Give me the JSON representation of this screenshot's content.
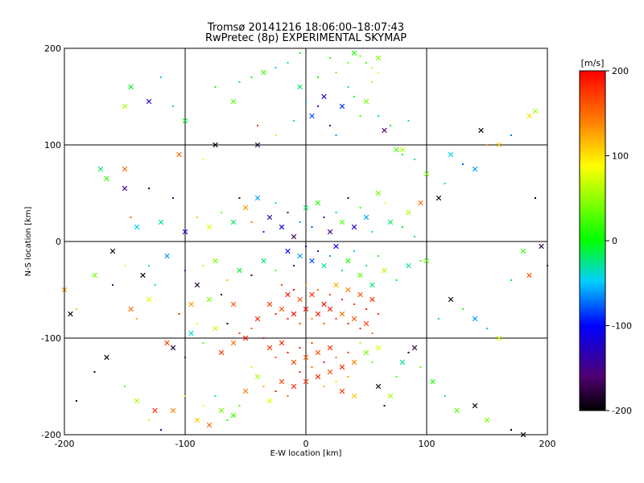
{
  "chart_data": {
    "type": "scatter",
    "title": "Tromsø 20141216 18:06:00–18:07:43",
    "subtitle": "RwPretec (8p) EXPERIMENTAL SKYMAP",
    "xlabel": "E-W location [km]",
    "ylabel": "N-S location [km]",
    "xlim": [
      -200,
      200
    ],
    "ylim": [
      -200,
      200
    ],
    "xticks": [
      -200,
      -100,
      0,
      100,
      200
    ],
    "yticks": [
      -200,
      -100,
      0,
      100,
      200
    ],
    "grid": true,
    "marker_types": [
      "x",
      "dot"
    ],
    "colorbar": {
      "label": "[m/s]",
      "range": [
        -200,
        200
      ],
      "ticks": [
        200,
        100,
        0,
        -100,
        -200
      ],
      "colormap": "black-purple-blue-cyan-green-yellow-orange-red"
    },
    "points": [
      [
        -5,
        195,
        -10,
        1
      ],
      [
        20,
        190,
        20,
        1
      ],
      [
        35,
        185,
        40,
        1
      ],
      [
        40,
        195,
        10,
        0
      ],
      [
        45,
        192,
        30,
        1
      ],
      [
        50,
        185,
        25,
        1
      ],
      [
        55,
        180,
        60,
        1
      ],
      [
        60,
        190,
        45,
        0
      ],
      [
        -15,
        185,
        -40,
        1
      ],
      [
        -25,
        180,
        -50,
        1
      ],
      [
        -35,
        175,
        20,
        0
      ],
      [
        -45,
        170,
        5,
        1
      ],
      [
        -55,
        165,
        -20,
        1
      ],
      [
        -60,
        145,
        30,
        0
      ],
      [
        -75,
        160,
        0,
        1
      ],
      [
        -100,
        125,
        -10,
        0
      ],
      [
        -110,
        140,
        -30,
        1
      ],
      [
        -120,
        170,
        -50,
        1
      ],
      [
        -130,
        145,
        -120,
        0
      ],
      [
        -150,
        140,
        60,
        0
      ],
      [
        -145,
        160,
        -10,
        0
      ],
      [
        -105,
        90,
        150,
        0
      ],
      [
        -85,
        85,
        80,
        1
      ],
      [
        -75,
        100,
        -200,
        0
      ],
      [
        -40,
        100,
        -180,
        0
      ],
      [
        -40,
        120,
        180,
        1
      ],
      [
        -25,
        110,
        60,
        1
      ],
      [
        -10,
        125,
        -30,
        1
      ],
      [
        0,
        145,
        -60,
        1
      ],
      [
        5,
        130,
        -80,
        0
      ],
      [
        10,
        140,
        -100,
        1
      ],
      [
        15,
        150,
        -120,
        0
      ],
      [
        20,
        120,
        -140,
        1
      ],
      [
        25,
        110,
        -60,
        1
      ],
      [
        30,
        140,
        -90,
        0
      ],
      [
        35,
        160,
        -30,
        1
      ],
      [
        40,
        150,
        -10,
        1
      ],
      [
        45,
        130,
        20,
        1
      ],
      [
        50,
        145,
        40,
        0
      ],
      [
        55,
        165,
        60,
        1
      ],
      [
        60,
        130,
        -40,
        1
      ],
      [
        65,
        115,
        -160,
        0
      ],
      [
        70,
        120,
        -10,
        1
      ],
      [
        75,
        95,
        30,
        0
      ],
      [
        80,
        90,
        10,
        1
      ],
      [
        85,
        125,
        -20,
        1
      ],
      [
        10,
        170,
        0,
        1
      ],
      [
        -5,
        160,
        -20,
        0
      ],
      [
        25,
        175,
        30,
        1
      ],
      [
        60,
        175,
        80,
        1
      ],
      [
        -170,
        75,
        -20,
        0
      ],
      [
        -165,
        65,
        20,
        0
      ],
      [
        -150,
        75,
        150,
        0
      ],
      [
        -150,
        55,
        -140,
        0
      ],
      [
        -145,
        25,
        160,
        1
      ],
      [
        -140,
        15,
        -50,
        0
      ],
      [
        -130,
        55,
        -190,
        1
      ],
      [
        -120,
        20,
        -30,
        0
      ],
      [
        -110,
        45,
        -160,
        1
      ],
      [
        -100,
        10,
        -120,
        0
      ],
      [
        -90,
        25,
        110,
        1
      ],
      [
        -80,
        15,
        80,
        0
      ],
      [
        -70,
        30,
        40,
        1
      ],
      [
        -60,
        20,
        -20,
        0
      ],
      [
        -55,
        45,
        -180,
        1
      ],
      [
        -50,
        35,
        130,
        0
      ],
      [
        -45,
        20,
        150,
        1
      ],
      [
        -40,
        45,
        -60,
        0
      ],
      [
        -35,
        10,
        -90,
        1
      ],
      [
        -30,
        25,
        -140,
        0
      ],
      [
        -25,
        40,
        -30,
        1
      ],
      [
        -20,
        15,
        -110,
        0
      ],
      [
        -15,
        30,
        -150,
        1
      ],
      [
        -10,
        5,
        -170,
        0
      ],
      [
        -5,
        20,
        -60,
        1
      ],
      [
        0,
        35,
        -20,
        0
      ],
      [
        5,
        15,
        -80,
        1
      ],
      [
        10,
        40,
        10,
        0
      ],
      [
        15,
        25,
        -100,
        1
      ],
      [
        20,
        10,
        -150,
        0
      ],
      [
        25,
        30,
        -40,
        1
      ],
      [
        30,
        20,
        30,
        0
      ],
      [
        35,
        45,
        -190,
        1
      ],
      [
        40,
        15,
        -120,
        0
      ],
      [
        45,
        35,
        20,
        1
      ],
      [
        50,
        25,
        -60,
        0
      ],
      [
        55,
        10,
        -30,
        1
      ],
      [
        60,
        50,
        40,
        0
      ],
      [
        65,
        40,
        90,
        1
      ],
      [
        70,
        20,
        -20,
        0
      ],
      [
        80,
        15,
        -10,
        1
      ],
      [
        85,
        30,
        60,
        0
      ],
      [
        90,
        5,
        -40,
        1
      ],
      [
        95,
        40,
        150,
        0
      ],
      [
        -160,
        -10,
        -190,
        0
      ],
      [
        -150,
        -25,
        80,
        1
      ],
      [
        -135,
        -35,
        -200,
        0
      ],
      [
        -130,
        -25,
        -30,
        1
      ],
      [
        -115,
        -15,
        -60,
        0
      ],
      [
        -100,
        -30,
        -90,
        1
      ],
      [
        -90,
        -45,
        -180,
        0
      ],
      [
        -85,
        -25,
        60,
        1
      ],
      [
        -75,
        -20,
        40,
        0
      ],
      [
        -65,
        -40,
        120,
        1
      ],
      [
        -55,
        -30,
        -10,
        0
      ],
      [
        -45,
        -35,
        -180,
        1
      ],
      [
        -35,
        -20,
        -20,
        0
      ],
      [
        -25,
        -30,
        30,
        1
      ],
      [
        -15,
        -10,
        -100,
        0
      ],
      [
        -10,
        -25,
        -150,
        1
      ],
      [
        -5,
        -15,
        -60,
        0
      ],
      [
        0,
        -5,
        -120,
        1
      ],
      [
        5,
        -20,
        -80,
        0
      ],
      [
        10,
        -10,
        -150,
        1
      ],
      [
        15,
        -25,
        -30,
        0
      ],
      [
        20,
        -15,
        -60,
        1
      ],
      [
        25,
        -5,
        -100,
        0
      ],
      [
        30,
        -30,
        -20,
        1
      ],
      [
        35,
        -20,
        10,
        0
      ],
      [
        40,
        -10,
        -50,
        1
      ],
      [
        45,
        -35,
        30,
        0
      ],
      [
        50,
        -25,
        -40,
        1
      ],
      [
        55,
        -45,
        -20,
        0
      ],
      [
        60,
        -15,
        10,
        1
      ],
      [
        65,
        -30,
        60,
        0
      ],
      [
        75,
        -40,
        -10,
        1
      ],
      [
        85,
        -25,
        -30,
        0
      ],
      [
        95,
        -20,
        20,
        1
      ],
      [
        100,
        -20,
        30,
        0
      ],
      [
        -20,
        -45,
        170,
        1
      ],
      [
        -15,
        -55,
        190,
        0
      ],
      [
        -10,
        -50,
        200,
        1
      ],
      [
        -5,
        -60,
        160,
        0
      ],
      [
        0,
        -45,
        130,
        1
      ],
      [
        5,
        -55,
        180,
        0
      ],
      [
        10,
        -50,
        150,
        1
      ],
      [
        15,
        -65,
        195,
        0
      ],
      [
        20,
        -55,
        170,
        1
      ],
      [
        25,
        -45,
        120,
        0
      ],
      [
        30,
        -60,
        185,
        1
      ],
      [
        35,
        -50,
        140,
        0
      ],
      [
        40,
        -65,
        175,
        1
      ],
      [
        45,
        -55,
        160,
        0
      ],
      [
        50,
        -70,
        195,
        1
      ],
      [
        55,
        -60,
        180,
        0
      ],
      [
        60,
        -75,
        170,
        1
      ],
      [
        -30,
        -65,
        175,
        0
      ],
      [
        -25,
        -75,
        190,
        1
      ],
      [
        -20,
        -70,
        160,
        0
      ],
      [
        -15,
        -80,
        185,
        1
      ],
      [
        -10,
        -75,
        200,
        0
      ],
      [
        -5,
        -85,
        170,
        1
      ],
      [
        0,
        -70,
        195,
        0
      ],
      [
        5,
        -80,
        150,
        1
      ],
      [
        10,
        -75,
        185,
        0
      ],
      [
        15,
        -85,
        165,
        1
      ],
      [
        20,
        -70,
        190,
        0
      ],
      [
        25,
        -80,
        175,
        1
      ],
      [
        30,
        -75,
        150,
        0
      ],
      [
        35,
        -85,
        195,
        1
      ],
      [
        40,
        -80,
        160,
        0
      ],
      [
        45,
        -90,
        185,
        1
      ],
      [
        50,
        -85,
        170,
        0
      ],
      [
        55,
        -95,
        150,
        1
      ],
      [
        -40,
        -80,
        185,
        0
      ],
      [
        -45,
        -90,
        160,
        1
      ],
      [
        -50,
        -100,
        190,
        0
      ],
      [
        -55,
        -95,
        170,
        1
      ],
      [
        -60,
        -105,
        150,
        0
      ],
      [
        -65,
        -85,
        -200,
        1
      ],
      [
        -70,
        -115,
        180,
        0
      ],
      [
        -35,
        -100,
        195,
        1
      ],
      [
        -30,
        -110,
        175,
        0
      ],
      [
        -25,
        -120,
        160,
        1
      ],
      [
        -20,
        -105,
        185,
        0
      ],
      [
        -15,
        -115,
        200,
        1
      ],
      [
        -10,
        -125,
        170,
        0
      ],
      [
        -5,
        -110,
        190,
        1
      ],
      [
        0,
        -120,
        155,
        0
      ],
      [
        5,
        -105,
        180,
        1
      ],
      [
        10,
        -115,
        165,
        0
      ],
      [
        15,
        -125,
        195,
        1
      ],
      [
        20,
        -110,
        175,
        0
      ],
      [
        25,
        -120,
        150,
        1
      ],
      [
        30,
        -130,
        185,
        0
      ],
      [
        35,
        -115,
        170,
        1
      ],
      [
        40,
        -125,
        140,
        0
      ],
      [
        45,
        -105,
        60,
        1
      ],
      [
        50,
        -115,
        40,
        0
      ],
      [
        55,
        -125,
        30,
        1
      ],
      [
        60,
        -110,
        80,
        0
      ],
      [
        -5,
        -135,
        190,
        1
      ],
      [
        0,
        -145,
        170,
        0
      ],
      [
        5,
        -130,
        150,
        1
      ],
      [
        10,
        -140,
        185,
        0
      ],
      [
        15,
        -150,
        120,
        1
      ],
      [
        20,
        -135,
        160,
        0
      ],
      [
        25,
        -145,
        100,
        1
      ],
      [
        30,
        -155,
        175,
        0
      ],
      [
        35,
        -140,
        130,
        1
      ],
      [
        40,
        -160,
        110,
        0
      ],
      [
        -10,
        -150,
        180,
        0
      ],
      [
        -15,
        -160,
        150,
        1
      ],
      [
        -20,
        -145,
        165,
        0
      ],
      [
        -25,
        -155,
        190,
        1
      ],
      [
        -30,
        -165,
        80,
        0
      ],
      [
        -35,
        -150,
        120,
        1
      ],
      [
        -40,
        -140,
        60,
        0
      ],
      [
        -45,
        -130,
        100,
        1
      ],
      [
        -50,
        -155,
        140,
        0
      ],
      [
        -55,
        -170,
        30,
        1
      ],
      [
        -60,
        -180,
        20,
        0
      ],
      [
        -65,
        -185,
        10,
        1
      ],
      [
        -70,
        -175,
        40,
        0
      ],
      [
        -75,
        -160,
        -30,
        1
      ],
      [
        -80,
        -190,
        150,
        0
      ],
      [
        -85,
        -170,
        90,
        1
      ],
      [
        -90,
        -185,
        110,
        0
      ],
      [
        -100,
        -160,
        60,
        1
      ],
      [
        -110,
        -175,
        140,
        0
      ],
      [
        -120,
        -195,
        -130,
        1
      ],
      [
        -125,
        -175,
        180,
        0
      ],
      [
        -130,
        -185,
        100,
        1
      ],
      [
        -140,
        -165,
        60,
        0
      ],
      [
        -150,
        -150,
        20,
        1
      ],
      [
        -165,
        -120,
        -200,
        0
      ],
      [
        -175,
        -135,
        -190,
        1
      ],
      [
        -190,
        -165,
        -200,
        1
      ],
      [
        -195,
        -75,
        -200,
        0
      ],
      [
        -200,
        -50,
        130,
        0
      ],
      [
        -190,
        -70,
        110,
        1
      ],
      [
        -175,
        -35,
        40,
        0
      ],
      [
        -160,
        -45,
        -160,
        1
      ],
      [
        -145,
        -70,
        150,
        0
      ],
      [
        -140,
        -80,
        120,
        1
      ],
      [
        -130,
        -60,
        80,
        0
      ],
      [
        -125,
        -45,
        -30,
        1
      ],
      [
        -115,
        -105,
        170,
        0
      ],
      [
        -110,
        -110,
        -190,
        0
      ],
      [
        -100,
        -120,
        -160,
        1
      ],
      [
        -95,
        -65,
        130,
        0
      ],
      [
        -90,
        -85,
        100,
        1
      ],
      [
        -80,
        -60,
        40,
        0
      ],
      [
        -70,
        -55,
        -180,
        1
      ],
      [
        -60,
        -65,
        160,
        0
      ],
      [
        -105,
        -75,
        190,
        1
      ],
      [
        -95,
        -95,
        -40,
        0
      ],
      [
        -85,
        -105,
        30,
        1
      ],
      [
        -75,
        -90,
        70,
        0
      ],
      [
        60,
        -150,
        -190,
        0
      ],
      [
        65,
        -170,
        -200,
        1
      ],
      [
        70,
        -160,
        60,
        0
      ],
      [
        75,
        -140,
        20,
        1
      ],
      [
        80,
        -125,
        -30,
        0
      ],
      [
        85,
        -115,
        -190,
        1
      ],
      [
        90,
        -110,
        -180,
        0
      ],
      [
        95,
        -130,
        40,
        1
      ],
      [
        105,
        -145,
        10,
        0
      ],
      [
        115,
        -160,
        -30,
        1
      ],
      [
        125,
        -175,
        30,
        0
      ],
      [
        140,
        -170,
        -200,
        0
      ],
      [
        150,
        -185,
        40,
        0
      ],
      [
        170,
        -195,
        -200,
        1
      ],
      [
        180,
        -200,
        -200,
        0
      ],
      [
        110,
        -80,
        -40,
        1
      ],
      [
        120,
        -60,
        -190,
        0
      ],
      [
        130,
        -70,
        10,
        1
      ],
      [
        140,
        -80,
        -60,
        0
      ],
      [
        150,
        -90,
        -50,
        1
      ],
      [
        160,
        -100,
        80,
        0
      ],
      [
        170,
        -40,
        -10,
        1
      ],
      [
        180,
        -10,
        20,
        0
      ],
      [
        185,
        -35,
        160,
        0
      ],
      [
        190,
        45,
        -200,
        1
      ],
      [
        195,
        -5,
        -180,
        0
      ],
      [
        200,
        -25,
        -150,
        1
      ],
      [
        185,
        130,
        100,
        0
      ],
      [
        190,
        135,
        60,
        0
      ],
      [
        170,
        110,
        -70,
        1
      ],
      [
        160,
        100,
        110,
        0
      ],
      [
        150,
        100,
        130,
        1
      ],
      [
        145,
        115,
        -200,
        0
      ],
      [
        140,
        75,
        -60,
        0
      ],
      [
        130,
        80,
        -80,
        1
      ],
      [
        120,
        90,
        -40,
        0
      ],
      [
        115,
        60,
        -20,
        1
      ],
      [
        110,
        45,
        -190,
        0
      ],
      [
        100,
        70,
        40,
        0
      ],
      [
        90,
        85,
        -30,
        1
      ],
      [
        80,
        95,
        60,
        0
      ]
    ]
  }
}
